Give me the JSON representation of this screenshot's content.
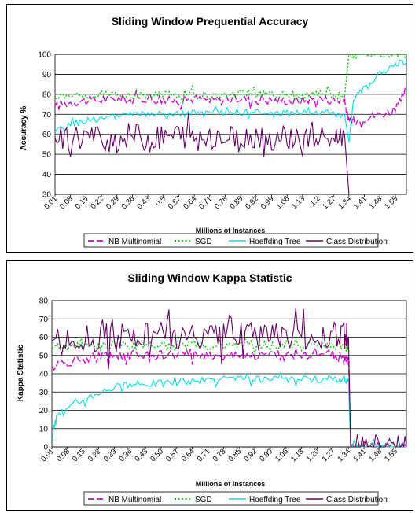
{
  "charts": [
    {
      "title": "Sliding Window Prequential Accuracy",
      "xlabel": "Millions of Instances",
      "ylabel": "Accuracy %",
      "yticks": [
        "30",
        "40",
        "50",
        "60",
        "70",
        "80",
        "90",
        "100"
      ],
      "xticks": [
        "0.01",
        "0.08",
        "0.15",
        "0.22",
        "0.29",
        "0.36",
        "0.43",
        "0.5",
        "0.57",
        "0.64",
        "0.71",
        "0.78",
        "0.85",
        "0.92",
        "0.99",
        "1.06",
        "1.13",
        "1.2",
        "1.27",
        "1.34",
        "1.41",
        "1.48",
        "1.55"
      ],
      "legend": [
        "NB Multinomial",
        "SGD",
        "Hoeffding Tree",
        "Class Distribution"
      ]
    },
    {
      "title": "Sliding Window Kappa Statistic",
      "xlabel": "Millions of Instances",
      "ylabel": "Kappa Statistic",
      "yticks": [
        "0",
        "10",
        "20",
        "30",
        "40",
        "50",
        "60",
        "70",
        "80"
      ],
      "xticks": [
        "0.01",
        "0.08",
        "0.15",
        "0.22",
        "0.29",
        "0.36",
        "0.43",
        "0.50",
        "0.57",
        "0.64",
        "0.71",
        "0.78",
        "0.85",
        "0.92",
        "0.99",
        "1.06",
        "1.13",
        "1.20",
        "1.27",
        "1.34",
        "1.41",
        "1.48",
        "1.55"
      ],
      "legend": [
        "NB Multinomial",
        "SGD",
        "Hoeffding Tree",
        "Class Distribution"
      ]
    }
  ],
  "colors": {
    "NB Multinomial": "#cc00cc",
    "SGD": "#00cc00",
    "Hoeffding Tree": "#00e0e0",
    "Class Distribution": "#660066"
  },
  "chart_data": [
    {
      "type": "line",
      "title": "Sliding Window Prequential Accuracy",
      "xlabel": "Millions of Instances",
      "ylabel": "Accuracy %",
      "ylim": [
        30,
        100
      ],
      "xlim": [
        0.01,
        1.6
      ],
      "grid": true,
      "legend_position": "bottom",
      "series": [
        {
          "name": "NB Multinomial",
          "x": [
            0.01,
            0.08,
            0.15,
            0.22,
            0.29,
            0.36,
            0.43,
            0.5,
            0.57,
            0.64,
            0.71,
            0.78,
            0.85,
            0.92,
            0.99,
            1.06,
            1.13,
            1.2,
            1.27,
            1.32,
            1.34,
            1.36,
            1.41,
            1.48,
            1.55,
            1.6
          ],
          "y": [
            74,
            76,
            77,
            77,
            78,
            77,
            78,
            77,
            77,
            78,
            77,
            77,
            78,
            77,
            77,
            77,
            77,
            78,
            77,
            77,
            66,
            67,
            68,
            70,
            72,
            82
          ]
        },
        {
          "name": "SGD",
          "x": [
            0.01,
            0.08,
            0.15,
            0.22,
            0.29,
            0.36,
            0.43,
            0.5,
            0.57,
            0.64,
            0.71,
            0.78,
            0.85,
            0.92,
            0.99,
            1.06,
            1.13,
            1.2,
            1.27,
            1.32,
            1.34,
            1.36,
            1.41,
            1.48,
            1.55,
            1.6
          ],
          "y": [
            78,
            79,
            79,
            80,
            80,
            79,
            80,
            80,
            80,
            80,
            79,
            80,
            81,
            80,
            80,
            80,
            79,
            80,
            80,
            79,
            100,
            100,
            100,
            100,
            100,
            100
          ]
        },
        {
          "name": "Hoeffding Tree",
          "x": [
            0.01,
            0.08,
            0.15,
            0.22,
            0.29,
            0.36,
            0.43,
            0.5,
            0.57,
            0.64,
            0.71,
            0.78,
            0.85,
            0.92,
            0.99,
            1.06,
            1.13,
            1.2,
            1.27,
            1.32,
            1.34,
            1.36,
            1.41,
            1.48,
            1.55,
            1.6
          ],
          "y": [
            61,
            65,
            67,
            68,
            69,
            70,
            70,
            70,
            70,
            71,
            70,
            71,
            71,
            71,
            70,
            71,
            71,
            71,
            70,
            70,
            56,
            78,
            84,
            90,
            95,
            96
          ]
        },
        {
          "name": "Class Distribution",
          "x": [
            0.01,
            0.08,
            0.15,
            0.22,
            0.29,
            0.36,
            0.43,
            0.5,
            0.57,
            0.64,
            0.71,
            0.78,
            0.85,
            0.92,
            0.99,
            1.06,
            1.13,
            1.2,
            1.27,
            1.32,
            1.34
          ],
          "y": [
            58,
            58,
            59,
            58,
            57,
            60,
            57,
            58,
            60,
            58,
            59,
            58,
            57,
            60,
            58,
            59,
            58,
            57,
            58,
            60,
            30
          ]
        }
      ]
    },
    {
      "type": "line",
      "title": "Sliding Window Kappa Statistic",
      "xlabel": "Millions of Instances",
      "ylabel": "Kappa Statistic",
      "ylim": [
        0,
        80
      ],
      "xlim": [
        0.01,
        1.6
      ],
      "grid": true,
      "legend_position": "bottom",
      "series": [
        {
          "name": "NB Multinomial",
          "x": [
            0.01,
            0.08,
            0.15,
            0.22,
            0.29,
            0.36,
            0.43,
            0.5,
            0.57,
            0.64,
            0.71,
            0.78,
            0.85,
            0.92,
            0.99,
            1.06,
            1.13,
            1.2,
            1.27,
            1.32,
            1.34,
            1.35,
            1.41,
            1.48,
            1.55,
            1.6
          ],
          "y": [
            44,
            46,
            48,
            49,
            50,
            50,
            51,
            50,
            50,
            51,
            50,
            50,
            51,
            50,
            50,
            50,
            50,
            51,
            50,
            49,
            48,
            0,
            0,
            0,
            0,
            0
          ]
        },
        {
          "name": "SGD",
          "x": [
            0.01,
            0.08,
            0.15,
            0.22,
            0.29,
            0.36,
            0.43,
            0.5,
            0.57,
            0.64,
            0.71,
            0.78,
            0.85,
            0.92,
            0.99,
            1.06,
            1.13,
            1.2,
            1.27,
            1.32,
            1.34,
            1.35,
            1.41,
            1.48,
            1.55,
            1.6
          ],
          "y": [
            54,
            55,
            55,
            56,
            56,
            55,
            56,
            56,
            55,
            56,
            55,
            56,
            57,
            56,
            55,
            56,
            55,
            56,
            56,
            55,
            54,
            0,
            0,
            0,
            0,
            0
          ]
        },
        {
          "name": "Hoeffding Tree",
          "x": [
            0.01,
            0.03,
            0.08,
            0.15,
            0.22,
            0.29,
            0.36,
            0.43,
            0.5,
            0.57,
            0.64,
            0.71,
            0.78,
            0.85,
            0.92,
            0.99,
            1.06,
            1.13,
            1.2,
            1.27,
            1.32,
            1.34,
            1.35,
            1.41,
            1.48,
            1.55,
            1.6
          ],
          "y": [
            5,
            15,
            21,
            26,
            30,
            33,
            34,
            35,
            35,
            36,
            36,
            36,
            37,
            37,
            37,
            37,
            37,
            37,
            37,
            37,
            37,
            36,
            0,
            0,
            0,
            0,
            0
          ]
        },
        {
          "name": "Class Distribution",
          "x": [
            0.01,
            0.08,
            0.15,
            0.22,
            0.29,
            0.36,
            0.43,
            0.5,
            0.57,
            0.64,
            0.71,
            0.78,
            0.85,
            0.92,
            0.99,
            1.06,
            1.13,
            1.2,
            1.27,
            1.32,
            1.34,
            1.35,
            1.41,
            1.48,
            1.55,
            1.6
          ],
          "y": [
            58,
            58,
            59,
            59,
            60,
            61,
            60,
            61,
            60,
            61,
            60,
            61,
            60,
            61,
            60,
            61,
            60,
            61,
            60,
            61,
            60,
            0,
            0,
            0,
            0,
            0
          ]
        }
      ]
    }
  ]
}
